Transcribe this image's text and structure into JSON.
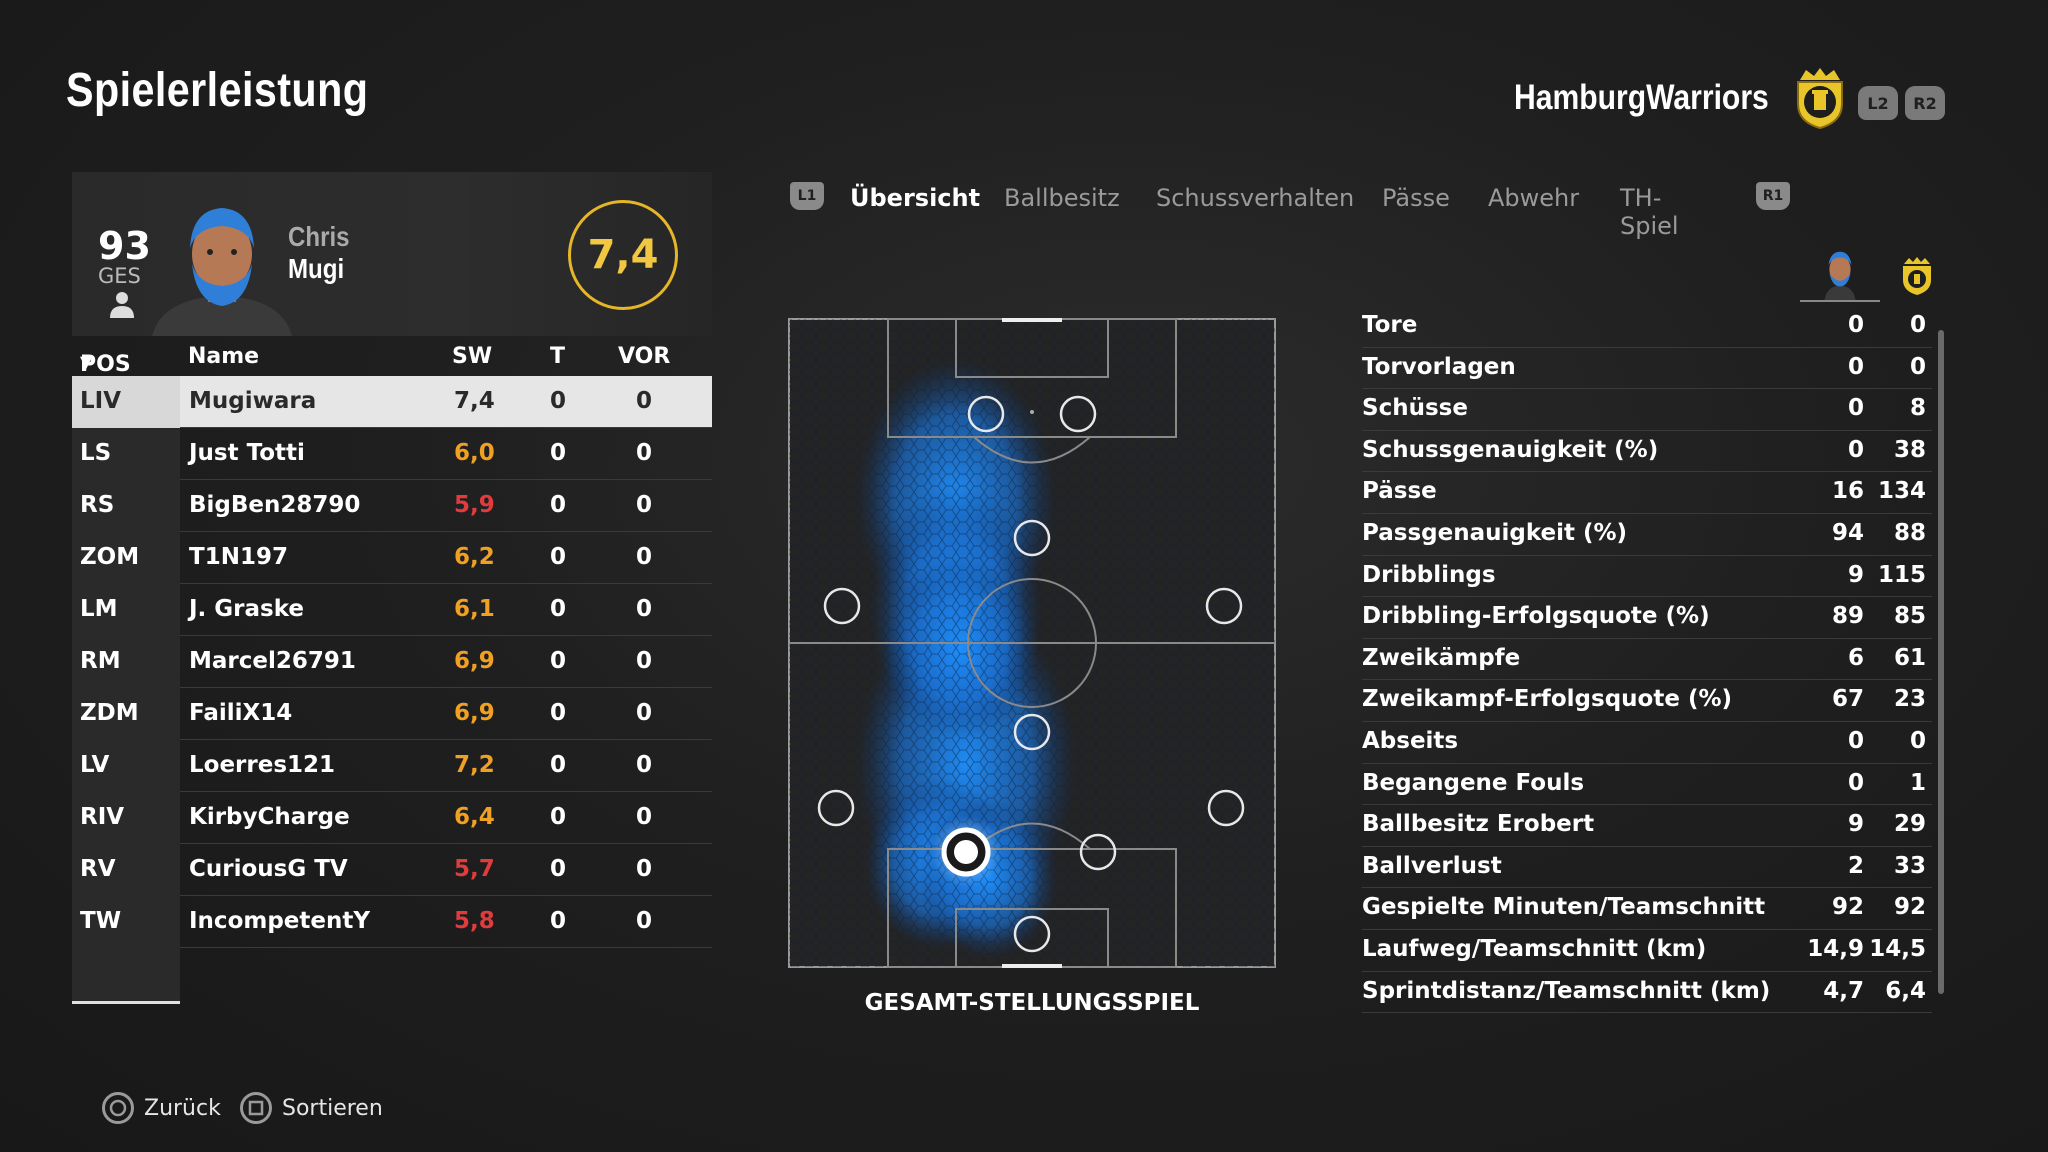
{
  "header": {
    "title": "Spielerleistung",
    "team_name": "HamburgWarriors",
    "l2": "L2",
    "r2": "R2"
  },
  "player": {
    "overall": "93",
    "overall_label": "GES",
    "first_name": "Chris",
    "last_name": "Mugi",
    "rating": "7,4"
  },
  "table": {
    "columns": {
      "pos": "POS",
      "name": "Name",
      "sw": "SW",
      "t": "T",
      "vor": "VOR"
    },
    "rows": [
      {
        "pos": "LIV",
        "name": "Mugiwara",
        "sw": "7,4",
        "t": "0",
        "vor": "0"
      },
      {
        "pos": "LS",
        "name": "Just Totti",
        "sw": "6,0",
        "t": "0",
        "vor": "0"
      },
      {
        "pos": "RS",
        "name": "BigBen28790",
        "sw": "5,9",
        "t": "0",
        "vor": "0"
      },
      {
        "pos": "ZOM",
        "name": "T1N197",
        "sw": "6,2",
        "t": "0",
        "vor": "0"
      },
      {
        "pos": "LM",
        "name": "J. Graske",
        "sw": "6,1",
        "t": "0",
        "vor": "0"
      },
      {
        "pos": "RM",
        "name": "Marcel26791",
        "sw": "6,9",
        "t": "0",
        "vor": "0"
      },
      {
        "pos": "ZDM",
        "name": "FailiX14",
        "sw": "6,9",
        "t": "0",
        "vor": "0"
      },
      {
        "pos": "LV",
        "name": "Loerres121",
        "sw": "7,2",
        "t": "0",
        "vor": "0"
      },
      {
        "pos": "RIV",
        "name": "KirbyCharge",
        "sw": "6,4",
        "t": "0",
        "vor": "0"
      },
      {
        "pos": "RV",
        "name": "CuriousG TV",
        "sw": "5,7",
        "t": "0",
        "vor": "0"
      },
      {
        "pos": "TW",
        "name": "IncompetentY",
        "sw": "5,8",
        "t": "0",
        "vor": "0"
      }
    ]
  },
  "tabs": {
    "l1": "L1",
    "r1": "R1",
    "items": [
      "Übersicht",
      "Ballbesitz",
      "Schussverhalten",
      "Pässe",
      "Abwehr",
      "TH-Spiel"
    ]
  },
  "pitch": {
    "caption": "GESAMT-STELLUNGSSPIEL"
  },
  "stats": [
    {
      "label": "Tore",
      "player": "0",
      "team": "0"
    },
    {
      "label": "Torvorlagen",
      "player": "0",
      "team": "0"
    },
    {
      "label": "Schüsse",
      "player": "0",
      "team": "8"
    },
    {
      "label": "Schussgenauigkeit (%)",
      "player": "0",
      "team": "38"
    },
    {
      "label": "Pässe",
      "player": "16",
      "team": "134"
    },
    {
      "label": "Passgenauigkeit (%)",
      "player": "94",
      "team": "88"
    },
    {
      "label": "Dribblings",
      "player": "9",
      "team": "115"
    },
    {
      "label": "Dribbling-Erfolgsquote (%)",
      "player": "89",
      "team": "85"
    },
    {
      "label": "Zweikämpfe",
      "player": "6",
      "team": "61"
    },
    {
      "label": "Zweikampf-Erfolgsquote (%)",
      "player": "67",
      "team": "23"
    },
    {
      "label": "Abseits",
      "player": "0",
      "team": "0"
    },
    {
      "label": "Begangene Fouls",
      "player": "0",
      "team": "1"
    },
    {
      "label": "Ballbesitz Erobert",
      "player": "9",
      "team": "29"
    },
    {
      "label": "Ballverlust",
      "player": "2",
      "team": "33"
    },
    {
      "label": "Gespielte Minuten/Teamschnitt",
      "player": "92",
      "team": "92"
    },
    {
      "label": "Laufweg/Teamschnitt (km)",
      "player": "14,9",
      "team": "14,5"
    },
    {
      "label": "Sprintdistanz/Teamschnitt (km)",
      "player": "4,7",
      "team": "6,4"
    }
  ],
  "footer": {
    "back": "Zurück",
    "sort": "Sortieren"
  },
  "colors": {
    "rating_gold": "#e5b52a",
    "rating_low": "#e23b3b",
    "rating_mid": "#f0a023",
    "heat_blue": "#1e8fff"
  }
}
